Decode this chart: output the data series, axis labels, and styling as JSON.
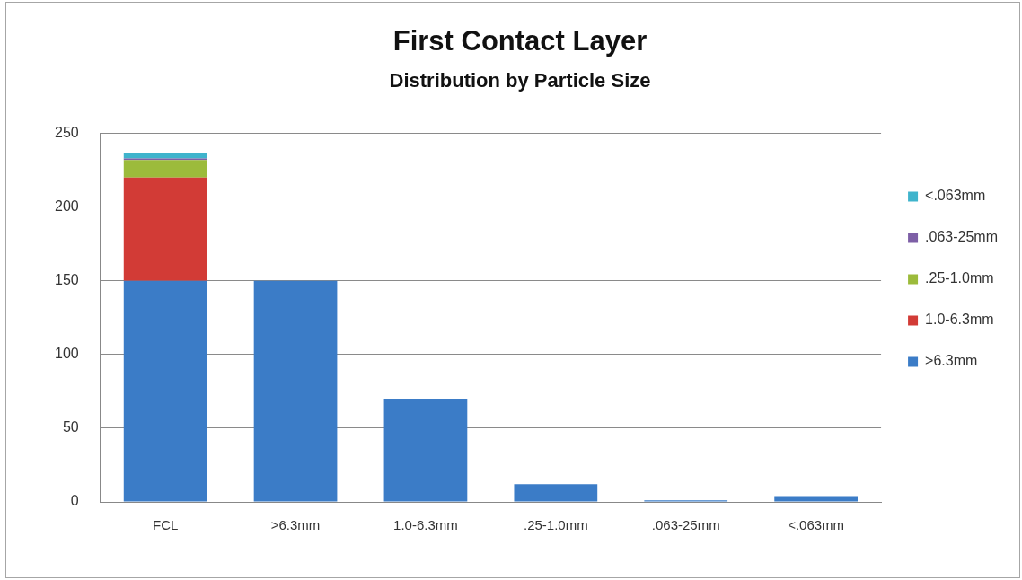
{
  "chart_data": {
    "type": "bar",
    "title": "First Contact Layer",
    "subtitle": "Distribution by Particle Size",
    "categories": [
      "FCL",
      ">6.3mm",
      "1.0-6.3mm",
      ".25-1.0mm",
      ".063-25mm",
      "<.063mm"
    ],
    "series": [
      {
        "name": ">6.3mm",
        "color": "#3b7cc7",
        "values": [
          150,
          150,
          70,
          12,
          1,
          4
        ]
      },
      {
        "name": "1.0-6.3mm",
        "color": "#d23b36",
        "values": [
          70,
          null,
          null,
          null,
          null,
          null
        ]
      },
      {
        "name": ".25-1.0mm",
        "color": "#9cbb3b",
        "values": [
          12,
          null,
          null,
          null,
          null,
          null
        ]
      },
      {
        "name": ".063-25mm",
        "color": "#7d5fa6",
        "values": [
          1,
          null,
          null,
          null,
          null,
          null
        ]
      },
      {
        "name": "<.063mm",
        "color": "#3fb4cc",
        "values": [
          4,
          null,
          null,
          null,
          null,
          null
        ]
      }
    ],
    "stacked": true,
    "ylim": [
      0,
      250
    ],
    "yticks": [
      0,
      50,
      100,
      150,
      200,
      250
    ],
    "grid": "y",
    "legend": "right"
  }
}
